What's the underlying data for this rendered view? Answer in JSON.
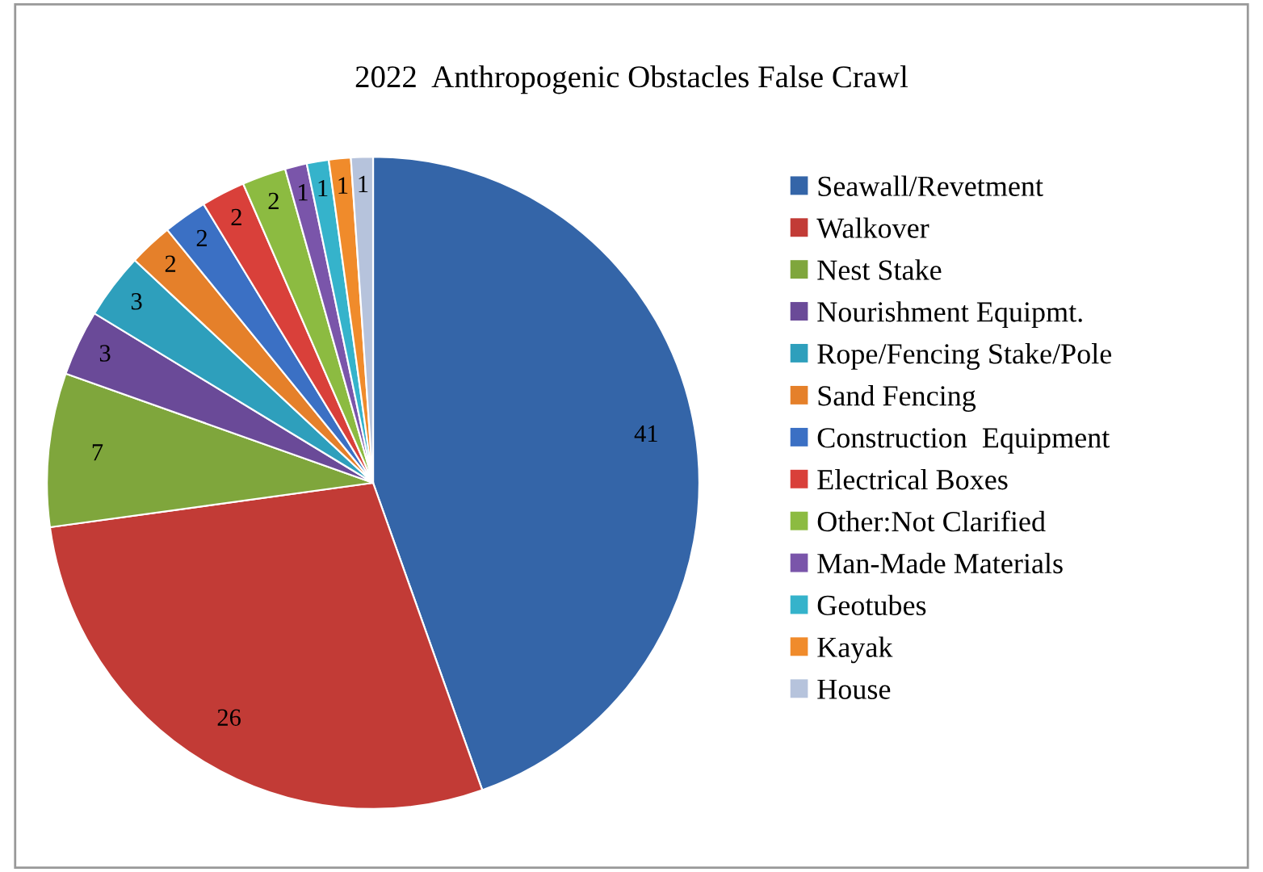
{
  "chart_data": {
    "type": "pie",
    "title": "2022  Anthropogenic Obstacles False Crawl",
    "categories": [
      "Seawall/Revetment",
      "Walkover",
      "Nest Stake",
      "Nourishment Equipmt.",
      "Rope/Fencing Stake/Pole",
      "Sand Fencing",
      "Construction  Equipment",
      "Electrical Boxes",
      "Other:Not Clarified",
      "Man-Made Materials",
      "Geotubes",
      "Kayak",
      "House"
    ],
    "values": [
      41,
      26,
      7,
      3,
      3,
      2,
      2,
      2,
      2,
      1,
      1,
      1,
      1
    ],
    "colors": [
      "#3465a8",
      "#c23b36",
      "#7fa63c",
      "#6a4a98",
      "#2e9fbc",
      "#e5802a",
      "#3b70c4",
      "#d9403a",
      "#8cbb41",
      "#7a55aa",
      "#35b3cb",
      "#f08b2b",
      "#b6c3dc"
    ],
    "data_labels": true,
    "legend": "right"
  }
}
